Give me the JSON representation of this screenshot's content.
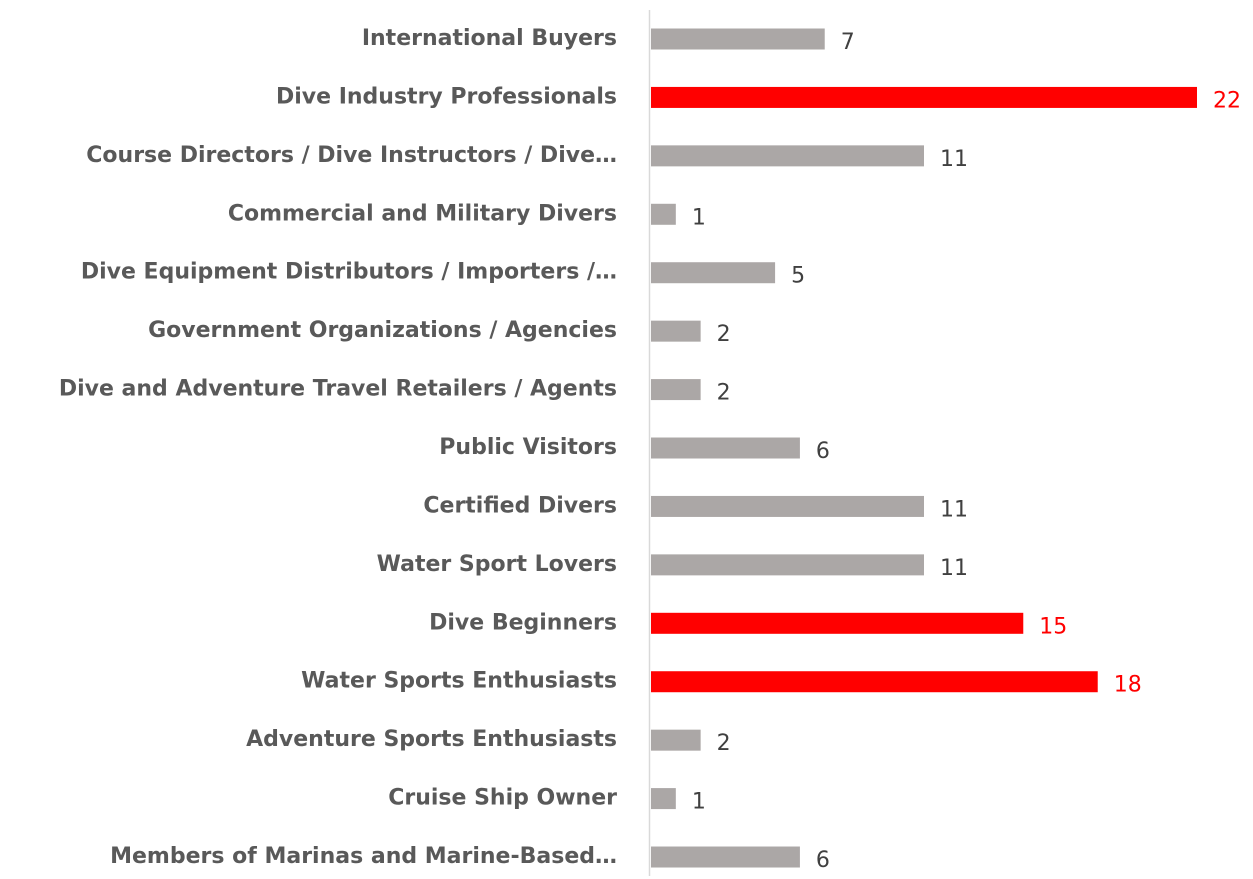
{
  "chart_data": {
    "type": "bar",
    "orientation": "horizontal",
    "categories": [
      "International Buyers",
      "Dive Industry Professionals",
      "Course Directors / Dive Instructors / Dive…",
      "Commercial and Military Divers",
      "Dive Equipment Distributors / Importers /…",
      "Government Organizations / Agencies",
      "Dive and Adventure Travel Retailers / Agents",
      "Public Visitors",
      "Certified Divers",
      "Water Sport Lovers",
      "Dive Beginners",
      "Water Sports Enthusiasts",
      "Adventure Sports Enthusiasts",
      "Cruise Ship Owner",
      "Members of Marinas and Marine-Based…"
    ],
    "values": [
      7,
      22,
      11,
      1,
      5,
      2,
      2,
      6,
      11,
      11,
      15,
      18,
      2,
      1,
      6
    ],
    "colors": [
      "#aba7a6",
      "#ff0000",
      "#aba7a6",
      "#aba7a6",
      "#aba7a6",
      "#aba7a6",
      "#aba7a6",
      "#aba7a6",
      "#aba7a6",
      "#aba7a6",
      "#ff0000",
      "#ff0000",
      "#aba7a6",
      "#aba7a6",
      "#aba7a6"
    ]
  }
}
